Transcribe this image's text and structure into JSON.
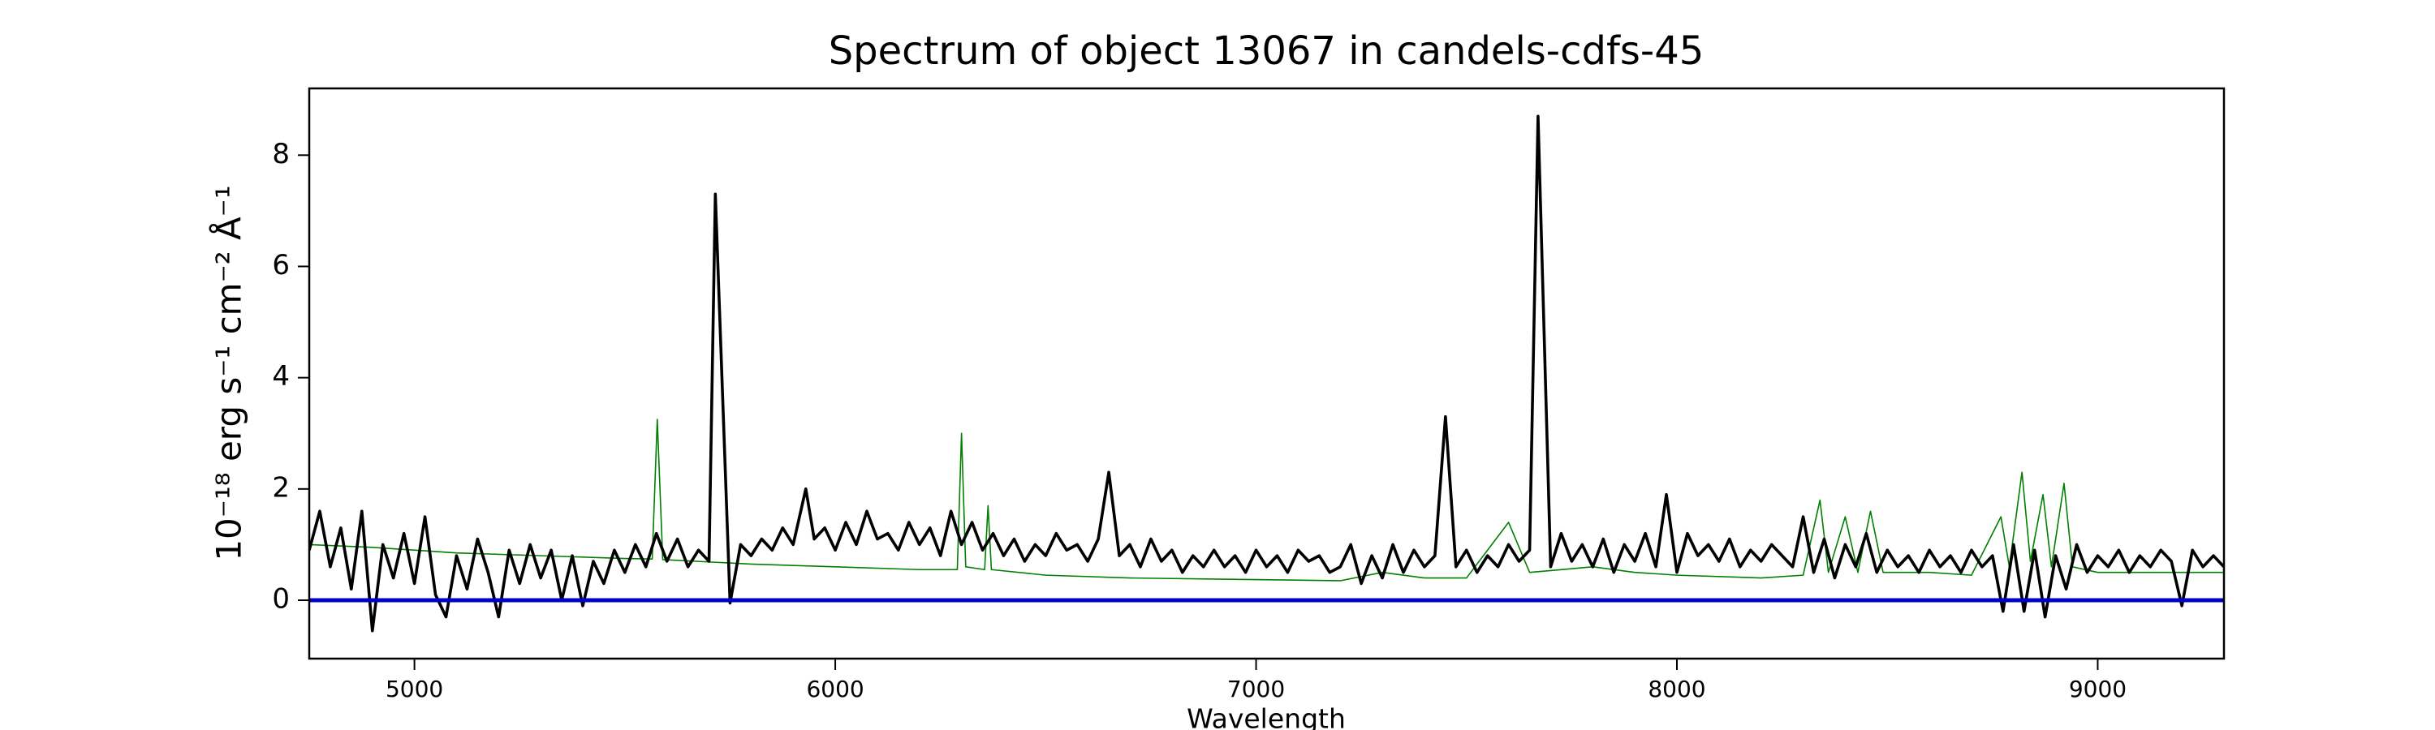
{
  "chart_data": {
    "type": "line",
    "title": "Spectrum of object 13067 in candels-cdfs-45",
    "xlabel": "Wavelength",
    "ylabel": "10⁻¹⁸ erg s⁻¹ cm⁻² Å⁻¹",
    "xlim": [
      4750,
      9300
    ],
    "ylim": [
      -1.05,
      9.2
    ],
    "xticks": [
      5000,
      6000,
      7000,
      8000,
      9000
    ],
    "yticks": [
      0,
      2,
      4,
      6,
      8
    ],
    "grid": false,
    "series": [
      {
        "color": "#008000",
        "width": 1.6,
        "x": [
          4750,
          4900,
          5100,
          5300,
          5500,
          5565,
          5577,
          5590,
          5800,
          6000,
          6200,
          6290,
          6300,
          6310,
          6355,
          6363,
          6371,
          6500,
          6700,
          7000,
          7200,
          7300,
          7400,
          7500,
          7600,
          7650,
          7800,
          7900,
          8000,
          8200,
          8300,
          8340,
          8360,
          8400,
          8430,
          8460,
          8490,
          8600,
          8700,
          8770,
          8790,
          8820,
          8840,
          8870,
          8890,
          8920,
          8940,
          9000,
          9300
        ],
        "values": [
          1.0,
          0.95,
          0.85,
          0.8,
          0.75,
          0.74,
          3.25,
          0.73,
          0.65,
          0.6,
          0.55,
          0.55,
          3.0,
          0.6,
          0.55,
          1.7,
          0.55,
          0.45,
          0.4,
          0.37,
          0.35,
          0.5,
          0.4,
          0.4,
          1.4,
          0.5,
          0.6,
          0.5,
          0.45,
          0.4,
          0.45,
          1.8,
          0.5,
          1.5,
          0.5,
          1.6,
          0.5,
          0.5,
          0.45,
          1.5,
          0.6,
          2.3,
          0.7,
          1.9,
          0.6,
          2.1,
          0.6,
          0.5,
          0.5
        ]
      },
      {
        "color": "#000000",
        "width": 3.6,
        "x": [
          4750,
          4775,
          4800,
          4825,
          4850,
          4875,
          4900,
          4925,
          4950,
          4975,
          5000,
          5025,
          5050,
          5075,
          5100,
          5125,
          5150,
          5175,
          5200,
          5225,
          5250,
          5275,
          5300,
          5325,
          5350,
          5375,
          5400,
          5425,
          5450,
          5475,
          5500,
          5525,
          5550,
          5575,
          5600,
          5625,
          5650,
          5675,
          5700,
          5715,
          5750,
          5775,
          5800,
          5825,
          5850,
          5875,
          5900,
          5930,
          5950,
          5975,
          6000,
          6025,
          6050,
          6075,
          6100,
          6125,
          6150,
          6175,
          6200,
          6225,
          6250,
          6275,
          6300,
          6325,
          6350,
          6375,
          6400,
          6425,
          6450,
          6475,
          6500,
          6525,
          6550,
          6575,
          6600,
          6625,
          6650,
          6675,
          6700,
          6725,
          6750,
          6775,
          6800,
          6825,
          6850,
          6875,
          6900,
          6925,
          6950,
          6975,
          7000,
          7025,
          7050,
          7075,
          7100,
          7125,
          7150,
          7175,
          7200,
          7225,
          7250,
          7275,
          7300,
          7325,
          7350,
          7375,
          7400,
          7425,
          7450,
          7475,
          7500,
          7525,
          7550,
          7575,
          7600,
          7625,
          7650,
          7670,
          7700,
          7725,
          7750,
          7775,
          7800,
          7825,
          7850,
          7875,
          7900,
          7925,
          7950,
          7975,
          8000,
          8025,
          8050,
          8075,
          8100,
          8125,
          8150,
          8175,
          8200,
          8225,
          8250,
          8275,
          8300,
          8325,
          8350,
          8375,
          8400,
          8425,
          8450,
          8475,
          8500,
          8525,
          8550,
          8575,
          8600,
          8625,
          8650,
          8675,
          8700,
          8725,
          8750,
          8775,
          8800,
          8825,
          8850,
          8875,
          8900,
          8925,
          8950,
          8975,
          9000,
          9025,
          9050,
          9075,
          9100,
          9125,
          9150,
          9175,
          9200,
          9225,
          9250,
          9275,
          9300
        ],
        "values": [
          0.9,
          1.6,
          0.6,
          1.3,
          0.2,
          1.6,
          -0.55,
          1.0,
          0.4,
          1.2,
          0.3,
          1.5,
          0.1,
          -0.3,
          0.8,
          0.2,
          1.1,
          0.5,
          -0.3,
          0.9,
          0.3,
          1.0,
          0.4,
          0.9,
          0.0,
          0.8,
          -0.1,
          0.7,
          0.3,
          0.9,
          0.5,
          1.0,
          0.6,
          1.2,
          0.7,
          1.1,
          0.6,
          0.9,
          0.7,
          7.3,
          -0.05,
          1.0,
          0.8,
          1.1,
          0.9,
          1.3,
          1.0,
          2.0,
          1.1,
          1.3,
          0.9,
          1.4,
          1.0,
          1.6,
          1.1,
          1.2,
          0.9,
          1.4,
          1.0,
          1.3,
          0.8,
          1.6,
          1.0,
          1.4,
          0.9,
          1.2,
          0.8,
          1.1,
          0.7,
          1.0,
          0.8,
          1.2,
          0.9,
          1.0,
          0.7,
          1.1,
          2.3,
          0.8,
          1.0,
          0.6,
          1.1,
          0.7,
          0.9,
          0.5,
          0.8,
          0.6,
          0.9,
          0.6,
          0.8,
          0.5,
          0.9,
          0.6,
          0.8,
          0.5,
          0.9,
          0.7,
          0.8,
          0.5,
          0.6,
          1.0,
          0.3,
          0.8,
          0.4,
          1.0,
          0.5,
          0.9,
          0.6,
          0.8,
          3.3,
          0.6,
          0.9,
          0.5,
          0.8,
          0.6,
          1.0,
          0.7,
          0.9,
          8.7,
          0.6,
          1.2,
          0.7,
          1.0,
          0.6,
          1.1,
          0.5,
          1.0,
          0.7,
          1.2,
          0.6,
          1.9,
          0.5,
          1.2,
          0.8,
          1.0,
          0.7,
          1.1,
          0.6,
          0.9,
          0.7,
          1.0,
          0.8,
          0.6,
          1.5,
          0.5,
          1.1,
          0.4,
          1.0,
          0.6,
          1.2,
          0.5,
          0.9,
          0.6,
          0.8,
          0.5,
          0.9,
          0.6,
          0.8,
          0.5,
          0.9,
          0.6,
          0.8,
          -0.2,
          1.0,
          -0.2,
          0.9,
          -0.3,
          0.8,
          0.2,
          1.0,
          0.5,
          0.8,
          0.6,
          0.9,
          0.5,
          0.8,
          0.6,
          0.9,
          0.7,
          -0.1,
          0.9,
          0.6,
          0.8,
          0.6
        ]
      },
      {
        "color": "#0000cc",
        "width": 5,
        "x": [
          4750,
          9300
        ],
        "values": [
          0,
          0
        ]
      }
    ]
  }
}
